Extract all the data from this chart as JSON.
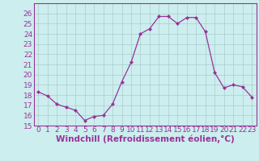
{
  "x": [
    0,
    1,
    2,
    3,
    4,
    5,
    6,
    7,
    8,
    9,
    10,
    11,
    12,
    13,
    14,
    15,
    16,
    17,
    18,
    19,
    20,
    21,
    22,
    23
  ],
  "y": [
    18.3,
    17.9,
    17.1,
    16.8,
    16.5,
    15.5,
    15.9,
    16.0,
    17.1,
    19.3,
    21.2,
    24.0,
    24.5,
    25.7,
    25.7,
    25.0,
    25.6,
    25.6,
    24.2,
    20.2,
    18.7,
    19.0,
    18.8,
    17.8
  ],
  "line_color": "#993399",
  "marker": "D",
  "marker_size": 2,
  "bg_color": "#cceeee",
  "grid_color": "#aacccc",
  "xlabel": "Windchill (Refroidissement éolien,°C)",
  "xlabel_color": "#993399",
  "tick_color": "#993399",
  "ylim": [
    15,
    27
  ],
  "xlim": [
    -0.5,
    23.5
  ],
  "yticks": [
    15,
    16,
    17,
    18,
    19,
    20,
    21,
    22,
    23,
    24,
    25,
    26
  ],
  "xticks": [
    0,
    1,
    2,
    3,
    4,
    5,
    6,
    7,
    8,
    9,
    10,
    11,
    12,
    13,
    14,
    15,
    16,
    17,
    18,
    19,
    20,
    21,
    22,
    23
  ],
  "tick_fontsize": 6.5,
  "xlabel_fontsize": 7.5
}
